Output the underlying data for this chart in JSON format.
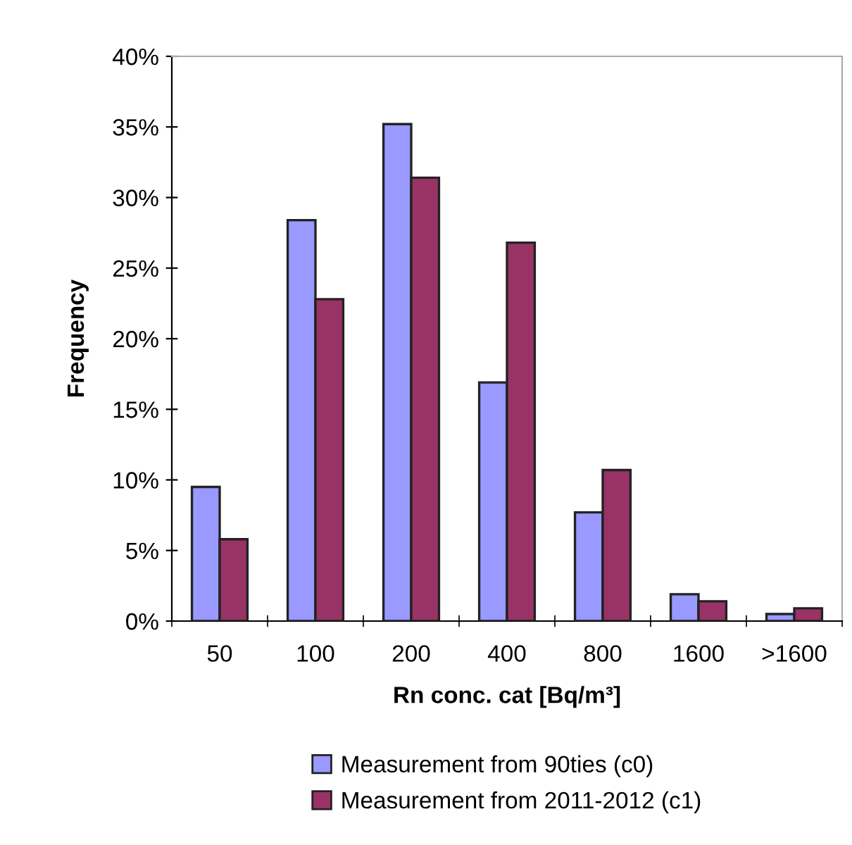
{
  "chart_data": {
    "type": "bar",
    "xlabel": "Rn conc. cat [Bq/m³]",
    "ylabel": "Frequency",
    "categories": [
      "50",
      "100",
      "200",
      "400",
      "800",
      "1600",
      ">1600"
    ],
    "series": [
      {
        "name": "Measurement from 90ties (c0)",
        "color": "#9999ff",
        "values": [
          9.5,
          28.4,
          35.2,
          16.9,
          7.7,
          1.9,
          0.5
        ]
      },
      {
        "name": "Measurement from 2011-2012 (c1)",
        "color": "#993366",
        "values": [
          5.8,
          22.8,
          31.4,
          26.8,
          10.7,
          1.4,
          0.9
        ]
      }
    ],
    "ylim": [
      0,
      40
    ],
    "yticks": [
      {
        "value": 0,
        "label": "0%"
      },
      {
        "value": 5,
        "label": "5%"
      },
      {
        "value": 10,
        "label": "10%"
      },
      {
        "value": 15,
        "label": "15%"
      },
      {
        "value": 20,
        "label": "20%"
      },
      {
        "value": 25,
        "label": "25%"
      },
      {
        "value": 30,
        "label": "30%"
      },
      {
        "value": 35,
        "label": "35%"
      },
      {
        "value": 40,
        "label": "40%"
      }
    ],
    "grid": false,
    "legend": "bottom"
  }
}
